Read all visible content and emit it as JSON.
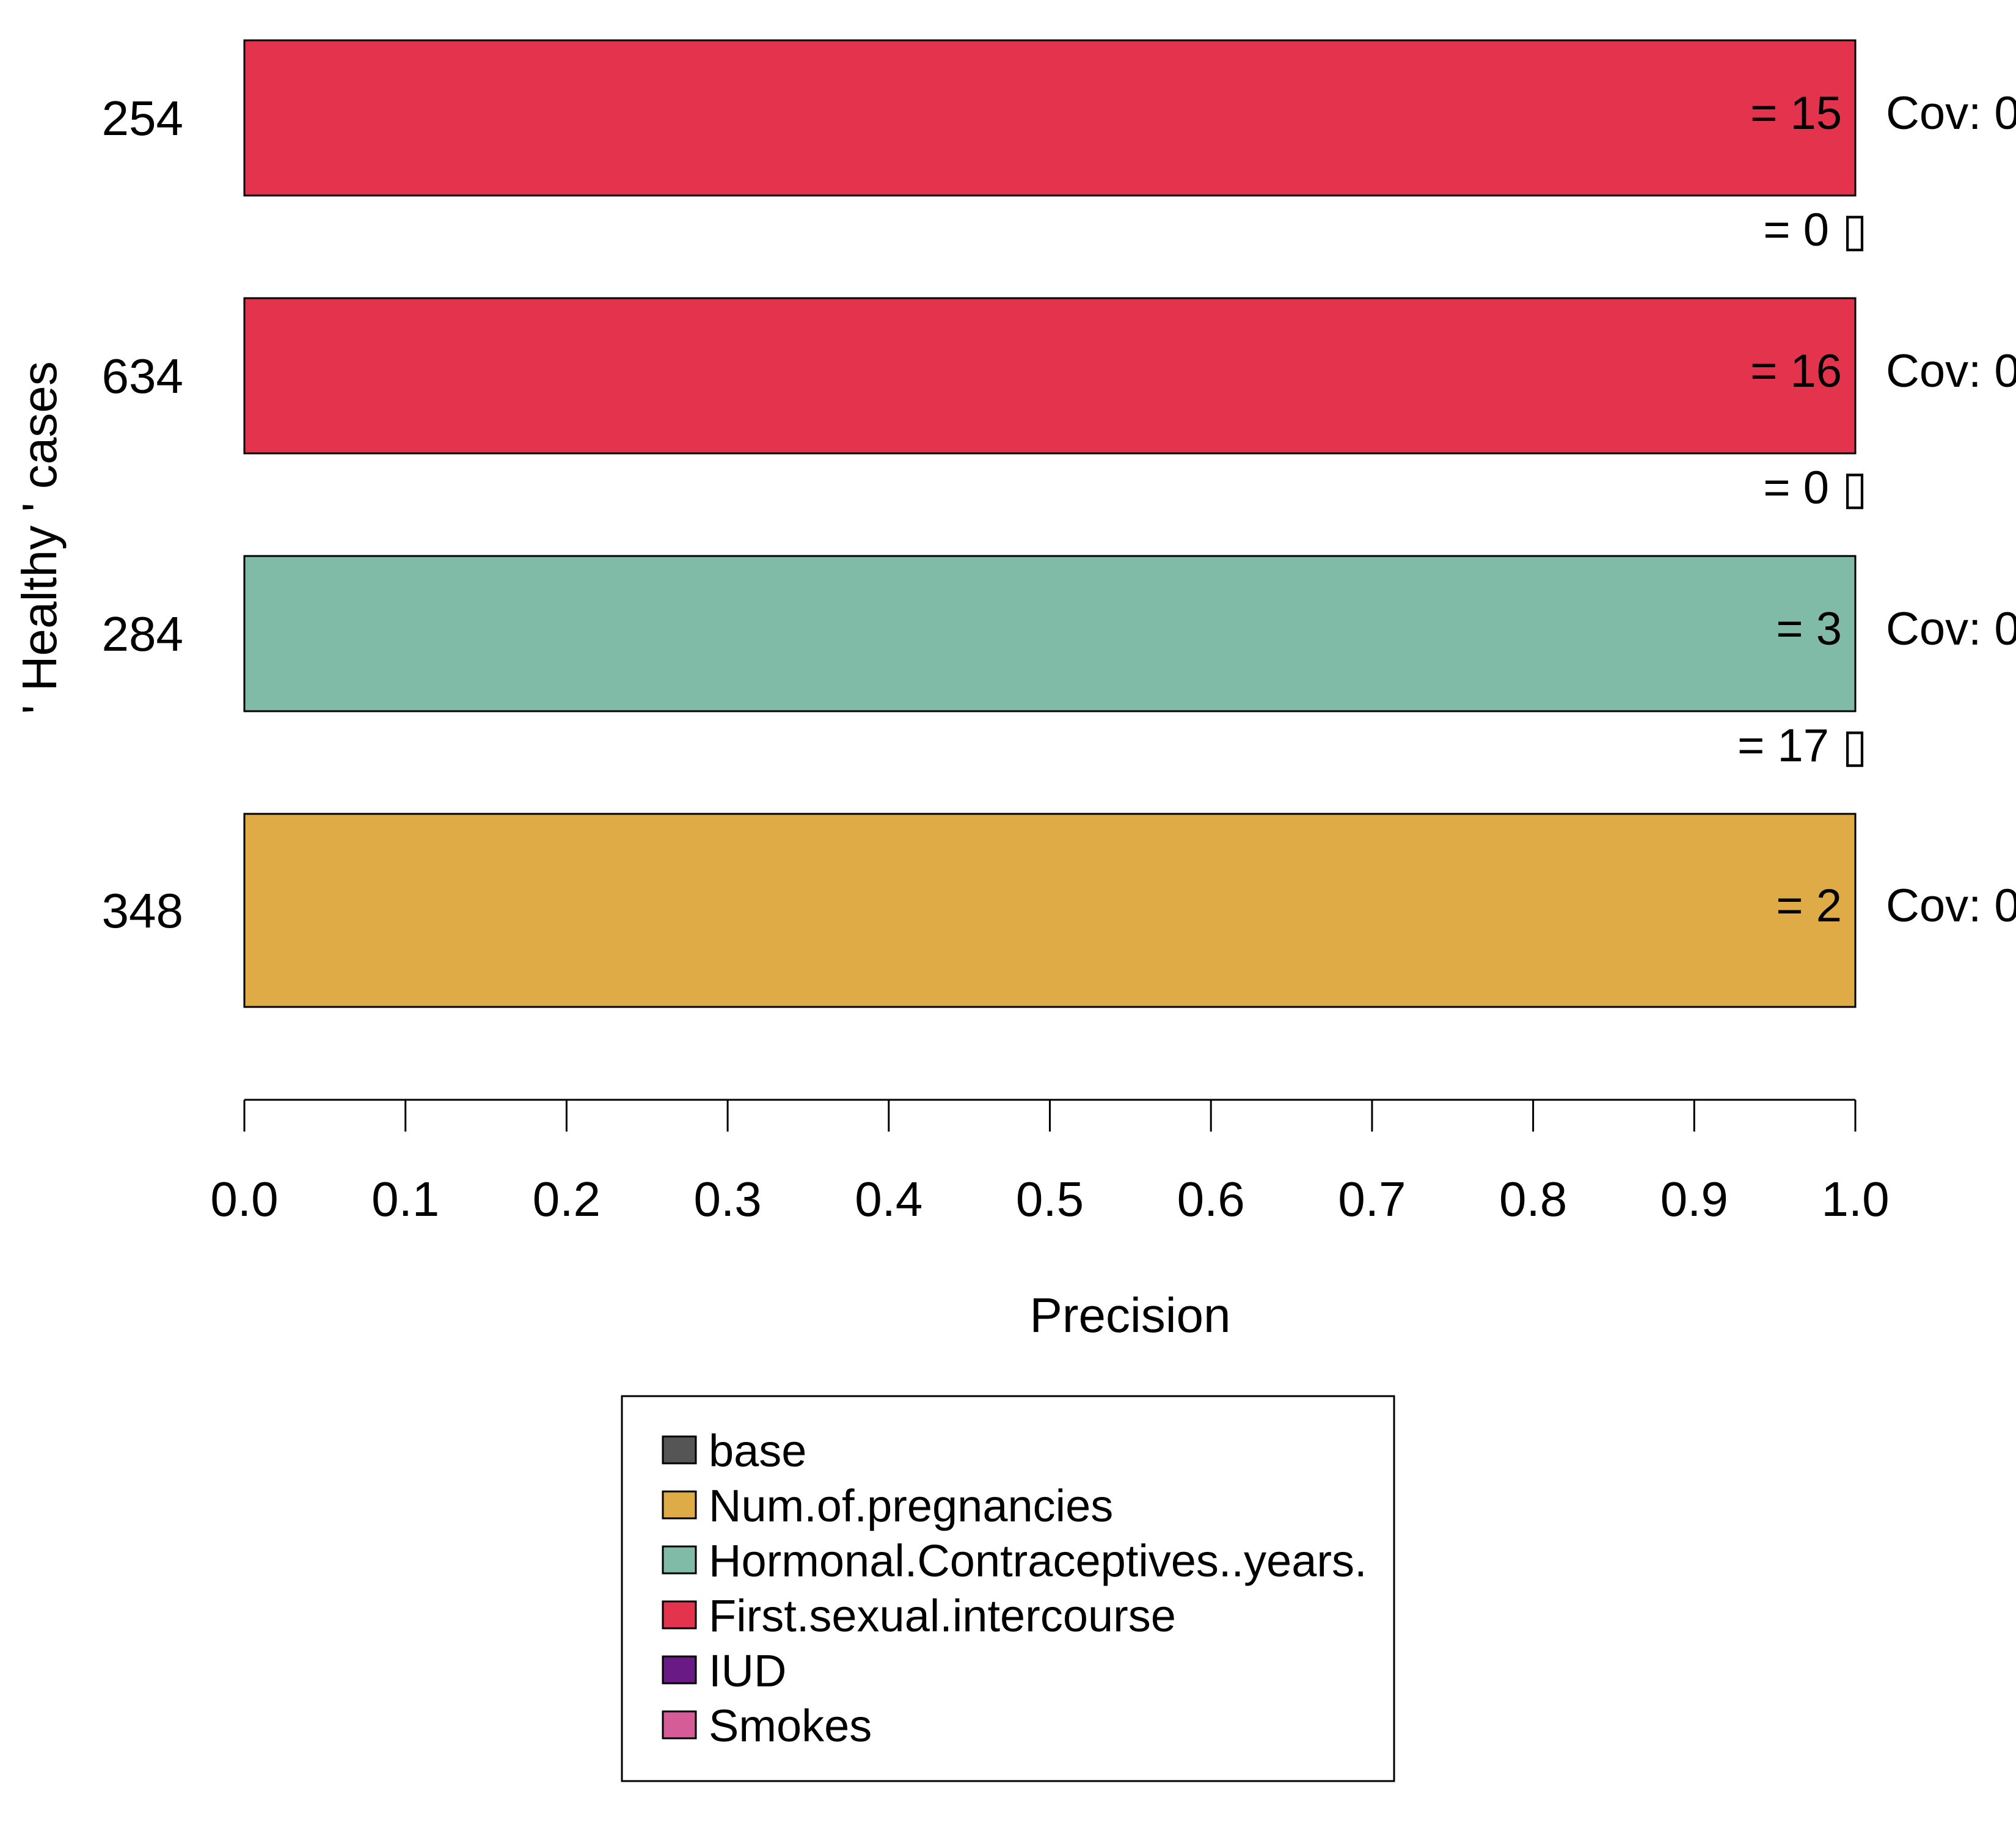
{
  "chart_data": {
    "type": "bar",
    "orientation": "horizontal",
    "title": "",
    "xlabel": "Precision",
    "ylabel": "' Healthy ' cases",
    "xlim": [
      0,
      1
    ],
    "xticks": [
      "0.0",
      "0.1",
      "0.2",
      "0.3",
      "0.4",
      "0.5",
      "0.6",
      "0.7",
      "0.8",
      "0.9",
      "1.0"
    ],
    "grid": false,
    "categories": [
      "254",
      "634",
      "284",
      "348"
    ],
    "values": [
      1.0,
      1.0,
      1.0,
      1.0
    ],
    "bar_features": [
      "First.sexual.intercourse",
      "First.sexual.intercourse",
      "Hormonal.Contraceptives..years.",
      "Num.of.pregnancies"
    ],
    "bar_labels": [
      "= 15",
      "= 16",
      "= 3",
      "= 2"
    ],
    "coverage_labels": [
      "Cov: 0",
      "Cov: 0",
      "Cov: 0",
      "Cov: 0"
    ],
    "secondary_labels": [
      {
        "text": "= 0 ▯",
        "feature": "Smokes"
      },
      {
        "text": "= 0 ▯",
        "feature": "IUD"
      },
      {
        "text": "= 17 ▯",
        "feature": "First.sexual.intercourse"
      },
      null
    ],
    "legend": {
      "position": "bottom-center",
      "entries": [
        {
          "name": "base",
          "color": "#555555"
        },
        {
          "name": "Num.of.pregnancies",
          "color": "#DFAB46"
        },
        {
          "name": "Hormonal.Contraceptives..years.",
          "color": "#80BBA8"
        },
        {
          "name": "First.sexual.intercourse",
          "color": "#E4344D"
        },
        {
          "name": "IUD",
          "color": "#6A1A84"
        },
        {
          "name": "Smokes",
          "color": "#D65C98"
        }
      ]
    }
  }
}
